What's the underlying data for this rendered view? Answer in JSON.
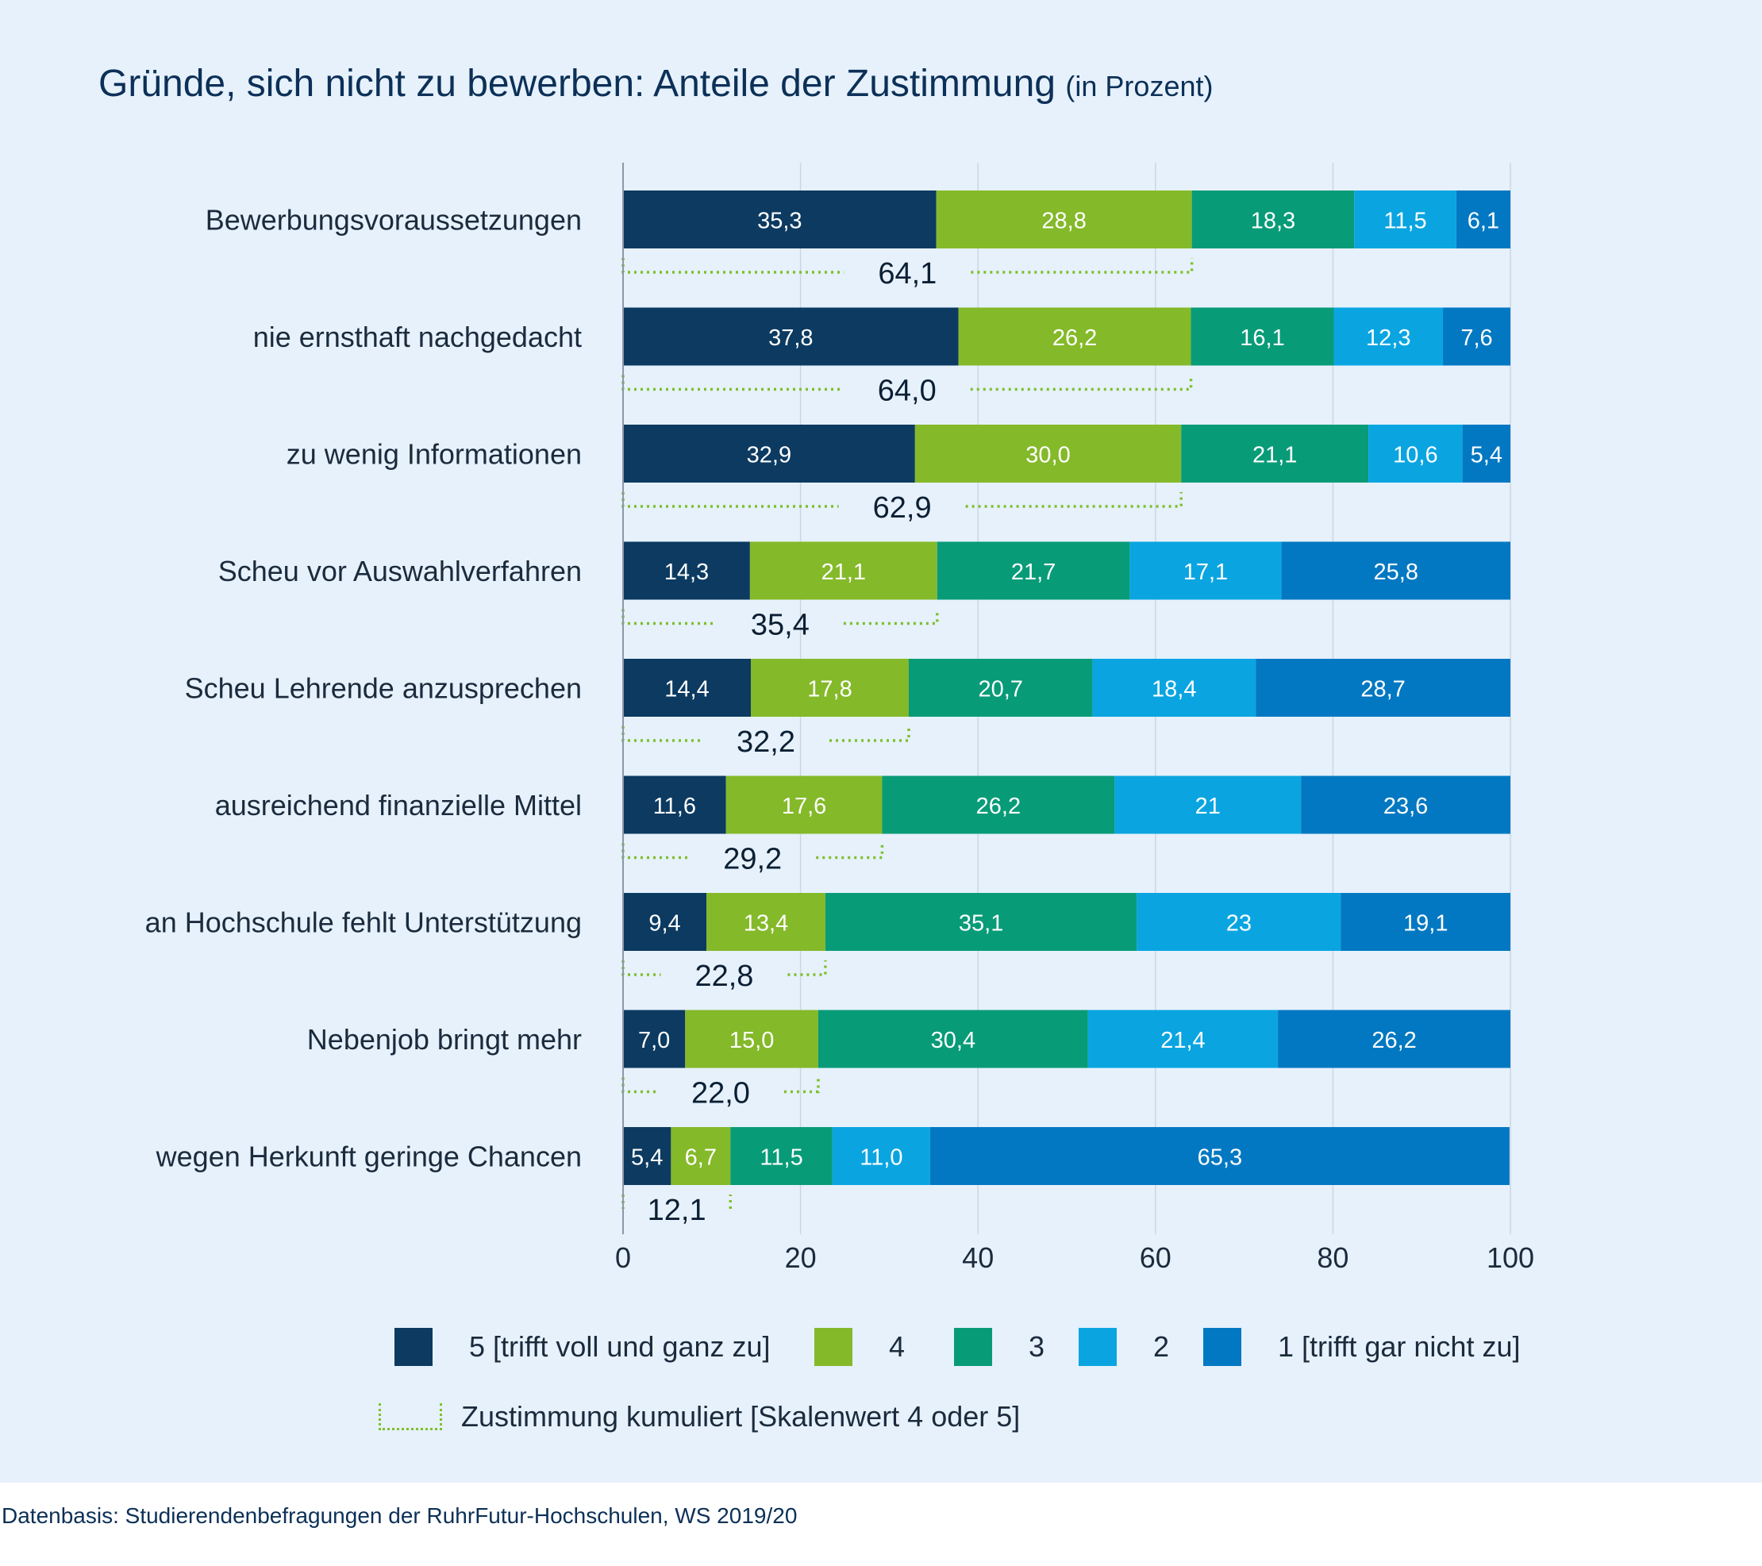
{
  "title": "Gründe, sich nicht zu bewerben: Anteile der Zustimmung",
  "subtitle": "(in Prozent)",
  "source": "Datenbasis: Studierendenbefragungen der RuhrFutur-Hochschulen, WS 2019/20",
  "legend": {
    "s5": "5 [trifft voll und ganz zu]",
    "s4": "4",
    "s3": "3",
    "s2": "2",
    "s1": "1 [trifft gar nicht zu]",
    "cumulative": "Zustimmung kumuliert [Skalenwert 4 oder 5]"
  },
  "colors": {
    "s5": "#0c3a61",
    "s4": "#84b929",
    "s3": "#089b78",
    "s2": "#0aa5e1",
    "s1": "#0378c2",
    "cumulative": "#7fbf2a",
    "grid": "#cdd6e0",
    "axis": "#8b98a8"
  },
  "chart_data": {
    "type": "bar",
    "orientation": "horizontal",
    "stacked": true,
    "categories": [
      "Bewerbungsvoraussetzungen",
      "nie ernsthaft nachgedacht",
      "zu wenig Informationen",
      "Scheu vor Auswahlverfahren",
      "Scheu Lehrende anzusprechen",
      "ausreichend finanzielle Mittel",
      "an Hochschule fehlt Unterstützung",
      "Nebenjob bringt mehr",
      "wegen Herkunft geringe Chancen"
    ],
    "series": [
      {
        "name": "5 [trifft voll und ganz zu]",
        "key": "s5",
        "values": [
          35.3,
          37.8,
          32.9,
          14.3,
          14.4,
          11.6,
          9.4,
          7.0,
          5.4
        ],
        "labels": [
          "35,3",
          "37,8",
          "32,9",
          "14,3",
          "14,4",
          "11,6",
          "9,4",
          "7,0",
          "5,4"
        ]
      },
      {
        "name": "4",
        "key": "s4",
        "values": [
          28.8,
          26.2,
          30.0,
          21.1,
          17.8,
          17.6,
          13.4,
          15.0,
          6.7
        ],
        "labels": [
          "28,8",
          "26,2",
          "30,0",
          "21,1",
          "17,8",
          "17,6",
          "13,4",
          "15,0",
          "6,7"
        ]
      },
      {
        "name": "3",
        "key": "s3",
        "values": [
          18.3,
          16.1,
          21.1,
          21.7,
          20.7,
          26.2,
          35.1,
          30.4,
          11.5
        ],
        "labels": [
          "18,3",
          "16,1",
          "21,1",
          "21,7",
          "20,7",
          "26,2",
          "35,1",
          "30,4",
          "11,5"
        ]
      },
      {
        "name": "2",
        "key": "s2",
        "values": [
          11.5,
          12.3,
          10.6,
          17.1,
          18.4,
          21,
          23,
          21.4,
          11.0
        ],
        "labels": [
          "11,5",
          "12,3",
          "10,6",
          "17,1",
          "18,4",
          "21",
          "23",
          "21,4",
          "11,0"
        ]
      },
      {
        "name": "1 [trifft gar nicht zu]",
        "key": "s1",
        "values": [
          6.1,
          7.6,
          5.4,
          25.8,
          28.7,
          23.6,
          19.1,
          26.2,
          65.3
        ],
        "labels": [
          "6,1",
          "7,6",
          "5,4",
          "25,8",
          "28,7",
          "23,6",
          "19,1",
          "26,2",
          "65,3"
        ]
      }
    ],
    "cumulative": {
      "name": "Zustimmung kumuliert [Skalenwert 4 oder 5]",
      "values": [
        64.1,
        64.0,
        62.9,
        35.4,
        32.2,
        29.2,
        22.8,
        22.0,
        12.1
      ],
      "labels": [
        "64,1",
        "64,0",
        "62,9",
        "35,4",
        "32,2",
        "29,2",
        "22,8",
        "22,0",
        "12,1"
      ]
    },
    "xlim": [
      0,
      100
    ],
    "xticks": [
      0,
      20,
      40,
      60,
      80,
      100
    ],
    "xlabel": "",
    "ylabel": "",
    "grid": true,
    "legend_position": "bottom"
  }
}
